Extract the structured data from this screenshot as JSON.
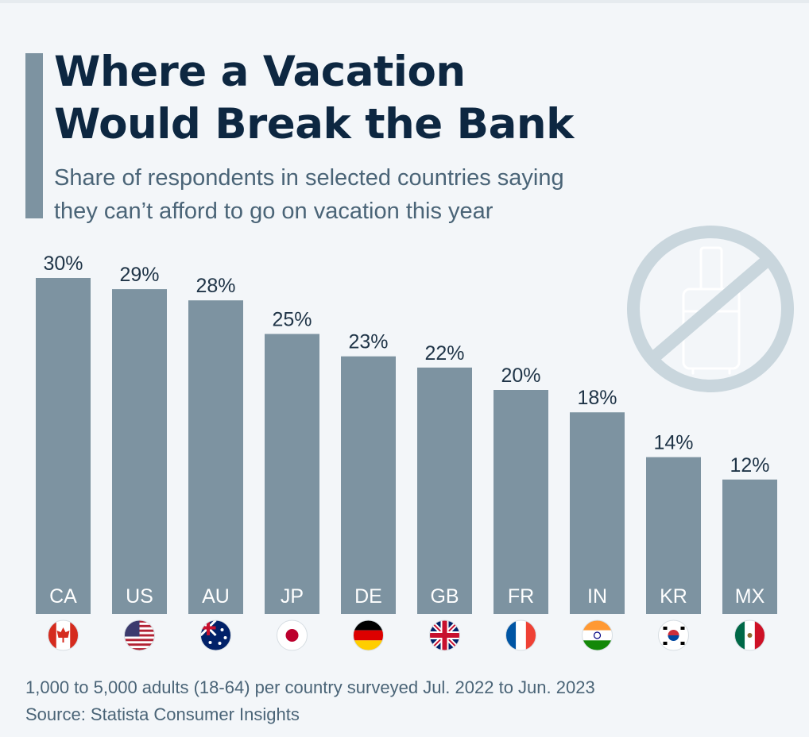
{
  "header": {
    "title_line1": "Where a Vacation",
    "title_line2": "Would Break the Bank",
    "subtitle_line1": "Share of respondents in selected countries saying",
    "subtitle_line2": "they can’t afford to go on vacation this year"
  },
  "footer": {
    "note": "1,000 to 5,000 adults (18-64) per country surveyed Jul. 2022 to Jun. 2023",
    "source": "Source: Statista Consumer Insights"
  },
  "colors": {
    "bar": "#7d93a1",
    "title": "#0d2741",
    "text": "#4a6477",
    "icon_circle": "#c9d6dd"
  },
  "icon": "no-luggage-icon",
  "chart_data": {
    "type": "bar",
    "title": "Where a Vacation Would Break the Bank",
    "subtitle": "Share of respondents in selected countries saying they can’t afford to go on vacation this year",
    "categories": [
      "CA",
      "US",
      "AU",
      "JP",
      "DE",
      "GB",
      "FR",
      "IN",
      "KR",
      "MX"
    ],
    "values": [
      30,
      29,
      28,
      25,
      23,
      22,
      20,
      18,
      14,
      12
    ],
    "data_labels": [
      "30%",
      "29%",
      "28%",
      "25%",
      "23%",
      "22%",
      "20%",
      "18%",
      "14%",
      "12%"
    ],
    "flags": [
      "canada-flag-icon",
      "usa-flag-icon",
      "australia-flag-icon",
      "japan-flag-icon",
      "germany-flag-icon",
      "uk-flag-icon",
      "france-flag-icon",
      "india-flag-icon",
      "south-korea-flag-icon",
      "mexico-flag-icon"
    ],
    "unit": "%",
    "ylim": [
      0,
      30
    ],
    "grid": false,
    "legend": "none"
  }
}
